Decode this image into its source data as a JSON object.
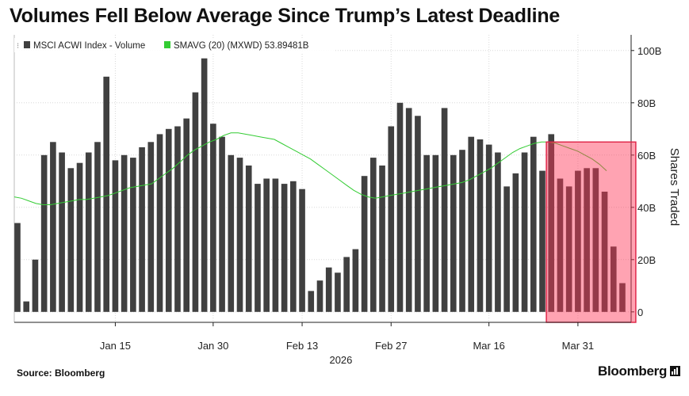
{
  "chart_data": {
    "type": "bar",
    "title": "Volumes Fell Below Average Since Trump’s Latest Deadline",
    "ylabel": "Shares Traded",
    "ylim": [
      -4,
      106
    ],
    "y_ticks": [
      "0",
      "20B",
      "40B",
      "60B",
      "80B",
      "100B"
    ],
    "y_tick_values": [
      0,
      20,
      40,
      60,
      80,
      100
    ],
    "x_tick_labels": [
      "Jan 15",
      "Jan 30",
      "Feb 13",
      "Feb 27",
      "Mar 16",
      "Mar 31"
    ],
    "x_tick_index": [
      11,
      22,
      32,
      42,
      53,
      63
    ],
    "x_year_label": "2026",
    "legend": [
      {
        "name": "MSCI ACWI Index - Volume",
        "color": "#404040"
      },
      {
        "name": "SMAVG (20) (MXWD) 53.89481B",
        "color": "#33cc33"
      }
    ],
    "legend_placement": "top-left",
    "series": [
      {
        "name": "MSCI ACWI Index - Volume",
        "values": [
          34,
          4,
          20,
          60,
          65,
          61,
          55,
          57,
          61,
          65,
          90,
          58,
          60,
          59,
          63,
          65,
          68,
          70,
          71,
          74,
          84,
          97,
          72,
          67,
          60,
          59,
          56,
          49,
          51,
          51,
          49,
          50,
          47,
          8,
          12,
          17,
          15,
          21,
          24,
          52,
          59,
          56,
          71,
          80,
          78,
          75,
          60,
          60,
          78,
          60,
          62,
          67,
          66,
          64,
          61,
          48,
          53,
          61,
          67,
          54,
          68,
          51,
          48,
          54,
          55,
          55,
          46,
          25,
          11
        ],
        "highlight_from": 60,
        "color": "#404040"
      },
      {
        "name": "SMAVG (20) (MXWD) 53.89481B",
        "values": [
          44,
          43.5,
          42.5,
          41.5,
          41,
          41,
          41.5,
          42,
          42.5,
          43,
          43,
          43.5,
          44,
          44.5,
          45.5,
          46.5,
          47.5,
          48,
          48.5,
          49,
          51,
          53,
          55,
          57.5,
          60,
          62,
          63.5,
          65,
          66,
          67.5,
          68.5,
          68.5,
          68,
          67.5,
          67,
          66.5,
          66,
          64.5,
          63,
          61.5,
          60,
          58.5,
          56.5,
          54.5,
          52.5,
          50.5,
          48.5,
          46.5,
          45,
          44,
          43.5,
          44,
          44.5,
          45,
          45.5,
          46,
          46.5,
          47,
          47.5,
          48,
          48.5,
          49,
          49.5,
          50.5,
          52,
          53.5,
          55,
          57,
          59,
          61,
          62.5,
          63.5,
          64.5,
          65,
          65,
          64.5,
          63.5,
          62.5,
          61.5,
          60,
          58.5,
          56.5,
          54
        ],
        "color": "#33cc33"
      }
    ]
  },
  "footer": {
    "source": "Source: Bloomberg",
    "brand": "Bloomberg"
  }
}
